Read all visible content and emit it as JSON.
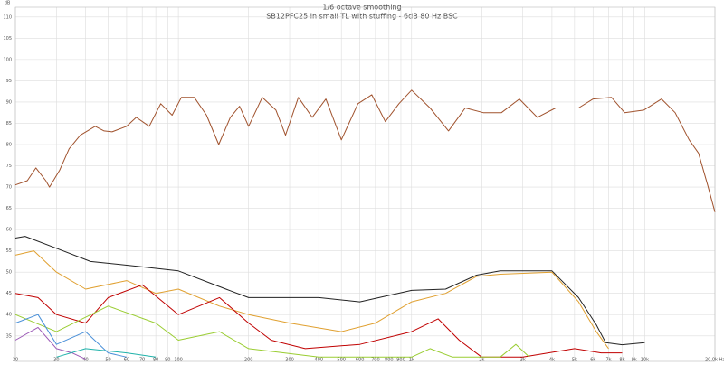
{
  "chart_data": {
    "type": "line",
    "title": "1/6 octave smoothing",
    "subtitle": "SB12PFC25 in small TL with stuffing - 6dB 80 Hz BSC",
    "y_label": "dB",
    "log_x": true,
    "grid": true,
    "xlim": [
      20,
      20000
    ],
    "ylim": [
      29,
      112.3
    ],
    "xticks": [
      20,
      30,
      40,
      50,
      60,
      70,
      80,
      90,
      100,
      200,
      300,
      400,
      500,
      600,
      700,
      800,
      900,
      {
        "value": 1000,
        "label": "1k"
      },
      {
        "value": 2000,
        "label": "2k"
      },
      {
        "value": 3000,
        "label": "3k"
      },
      {
        "value": 4000,
        "label": "4k"
      },
      {
        "value": 5000,
        "label": "5k"
      },
      {
        "value": 6000,
        "label": "6k"
      },
      {
        "value": 7000,
        "label": "7k"
      },
      {
        "value": 8000,
        "label": "8k"
      },
      {
        "value": 9000,
        "label": "9k"
      },
      {
        "value": 10000,
        "label": "10k"
      },
      {
        "value": 20000,
        "label": "20.0k Hz"
      }
    ],
    "yticks": [
      35,
      40,
      45,
      50,
      55,
      60,
      65,
      70,
      75,
      80,
      85,
      90,
      95,
      100,
      105,
      110
    ],
    "series": [
      {
        "color": "#a0522d",
        "x": [
          20,
          22.5,
          24.5,
          27,
          28,
          31,
          34,
          38,
          44,
          48,
          52,
          60,
          66,
          75,
          84,
          94,
          103,
          117,
          132,
          149,
          167,
          183,
          200,
          229,
          262,
          288,
          327,
          375,
          429,
          500,
          589,
          675,
          772,
          883,
          1000,
          1200,
          1440,
          1700,
          2030,
          2430,
          2900,
          3460,
          4150,
          5200,
          6000,
          7200,
          8200,
          9900,
          11800,
          13500,
          15500,
          17000,
          18600,
          20000
        ],
        "values": [
          70.5,
          71.5,
          74.5,
          71.5,
          70,
          74,
          79,
          82.2,
          84.3,
          83.2,
          83,
          84.3,
          86.4,
          84.3,
          89.6,
          86.9,
          91.1,
          91.1,
          86.9,
          80,
          86.4,
          89,
          84.3,
          91.1,
          88.1,
          82.2,
          91.1,
          86.4,
          90.7,
          81.1,
          89.6,
          91.7,
          85.4,
          89.6,
          92.8,
          88.6,
          83.2,
          88.6,
          87.5,
          87.5,
          90.7,
          86.4,
          88.6,
          88.6,
          90.7,
          91.1,
          87.5,
          88.1,
          90.7,
          87.5,
          81.1,
          78,
          70.5,
          64.1
        ]
      },
      {
        "color": "#222222",
        "x": [
          20,
          22,
          30,
          42,
          66,
          100,
          160,
          200,
          250,
          400,
          600,
          1000,
          1400,
          1900,
          2400,
          4000,
          5200,
          6200,
          6800,
          8000,
          10000
        ],
        "values": [
          58,
          58.4,
          55.6,
          52.5,
          51.4,
          50.3,
          46,
          44,
          44,
          44,
          43,
          45.7,
          46,
          49.3,
          50.3,
          50.3,
          44,
          37.6,
          33.4,
          32.9,
          33.4
        ]
      },
      {
        "color": "#e0a030",
        "x": [
          20,
          24,
          30,
          40,
          60,
          80,
          100,
          150,
          200,
          300,
          500,
          700,
          1000,
          1400,
          1900,
          2400,
          4000,
          5200,
          6200,
          7000
        ],
        "values": [
          54,
          55,
          50,
          46,
          48,
          45,
          46,
          42,
          40,
          38,
          36,
          38,
          43,
          45,
          49,
          49.5,
          50,
          43,
          36,
          32
        ]
      },
      {
        "color": "#c00000",
        "x": [
          20,
          25,
          30,
          40,
          50,
          70,
          100,
          150,
          200,
          250,
          350,
          600,
          1000,
          1300,
          1600,
          2000,
          3000,
          5000,
          6500,
          8000
        ],
        "values": [
          45,
          44,
          40,
          38,
          44,
          47,
          40,
          44,
          38,
          34,
          32,
          33,
          36,
          39,
          34,
          30,
          30,
          32,
          31,
          31
        ]
      },
      {
        "color": "#9acd32",
        "x": [
          20,
          30,
          50,
          80,
          100,
          150,
          200,
          400,
          1000,
          1200,
          1500,
          2400,
          2800,
          3200
        ],
        "values": [
          40,
          36,
          42,
          38,
          34,
          36,
          32,
          30,
          30,
          32,
          30,
          30,
          33,
          30
        ]
      },
      {
        "color": "#4a90d9",
        "x": [
          20,
          25,
          30,
          40,
          50,
          60
        ],
        "values": [
          38,
          40,
          33,
          36,
          31,
          30
        ]
      },
      {
        "color": "#9b59b6",
        "x": [
          20,
          25,
          30,
          35,
          40
        ],
        "values": [
          34,
          37,
          32,
          31,
          29.5
        ]
      },
      {
        "color": "#20b2aa",
        "x": [
          30,
          40,
          60,
          80
        ],
        "values": [
          30,
          32,
          31,
          30
        ]
      }
    ]
  }
}
